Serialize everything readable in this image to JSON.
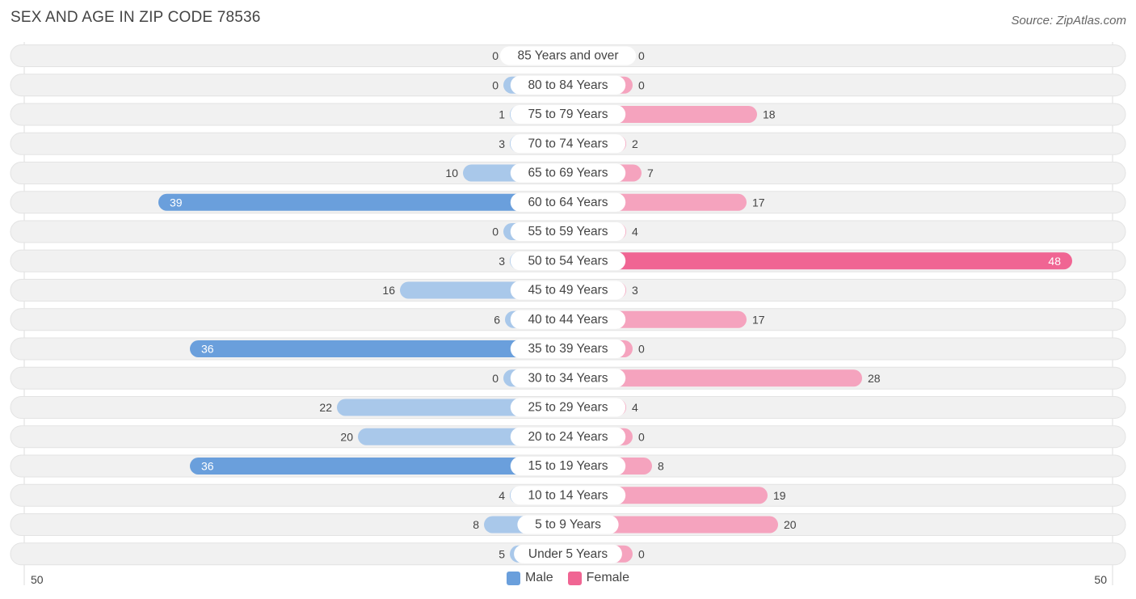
{
  "header": {
    "title": "SEX AND AGE IN ZIP CODE 78536",
    "source": "Source: ZipAtlas.com"
  },
  "legend": {
    "male_label": "Male",
    "female_label": "Female"
  },
  "axis": {
    "left_label": "50",
    "right_label": "50"
  },
  "colors": {
    "male_strong": "#6a9fdc",
    "male_light": "#a9c8ea",
    "female_strong": "#f06593",
    "female_light": "#f5a3be",
    "row_bg": "#f1f1f1"
  },
  "chart_data": {
    "type": "bar",
    "orientation": "horizontal-diverging",
    "title": "SEX AND AGE IN ZIP CODE 78536",
    "xlim": [
      -50,
      50
    ],
    "categories": [
      "85 Years and over",
      "80 to 84 Years",
      "75 to 79 Years",
      "70 to 74 Years",
      "65 to 69 Years",
      "60 to 64 Years",
      "55 to 59 Years",
      "50 to 54 Years",
      "45 to 49 Years",
      "40 to 44 Years",
      "35 to 39 Years",
      "30 to 34 Years",
      "25 to 29 Years",
      "20 to 24 Years",
      "15 to 19 Years",
      "10 to 14 Years",
      "5 to 9 Years",
      "Under 5 Years"
    ],
    "series": [
      {
        "name": "Male",
        "values": [
          0,
          0,
          1,
          3,
          10,
          39,
          0,
          3,
          16,
          6,
          36,
          0,
          22,
          20,
          36,
          4,
          8,
          5
        ]
      },
      {
        "name": "Female",
        "values": [
          0,
          0,
          18,
          2,
          7,
          17,
          4,
          48,
          3,
          17,
          0,
          28,
          4,
          0,
          8,
          19,
          20,
          0
        ]
      }
    ],
    "legend_position": "bottom-center"
  }
}
